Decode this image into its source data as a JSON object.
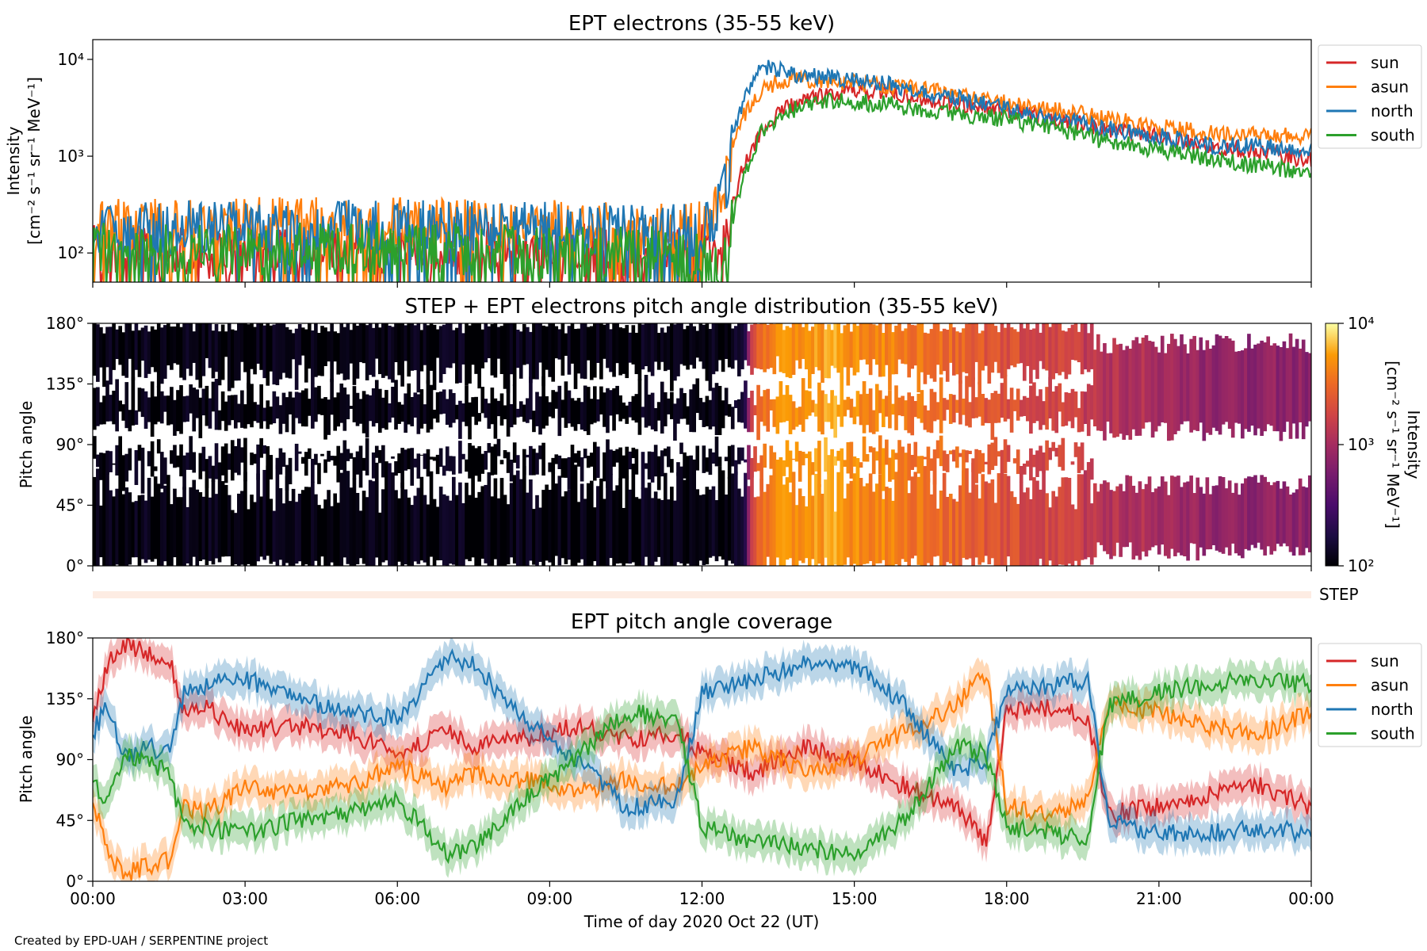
{
  "colors": {
    "sun": "#d62728",
    "asun": "#ff7f0e",
    "north": "#1f77b4",
    "south": "#2ca02c"
  },
  "credit": "Created by EPD-UAH / SERPENTINE project",
  "chart_data": [
    {
      "type": "line",
      "title": "EPT electrons (35-55 keV)",
      "ylabel_line1": "Intensity",
      "ylabel_line2": "[cm⁻² s⁻¹ sr⁻¹ MeV⁻¹]",
      "yscale": "log",
      "ylim": [
        50,
        16000
      ],
      "yticks": [
        {
          "value": 100,
          "label": "10²"
        },
        {
          "value": 1000,
          "label": "10³"
        },
        {
          "value": 10000,
          "label": "10⁴"
        }
      ],
      "xlim_hours": [
        0,
        24
      ],
      "legend_position": "right-outside",
      "series": [
        {
          "name": "sun",
          "color_key": "sun",
          "x": [
            0,
            2,
            4,
            6,
            8,
            10,
            11,
            12.3,
            12.55,
            12.8,
            13.2,
            13.8,
            14.5,
            15.5,
            16.5,
            18,
            20,
            22,
            24
          ],
          "y": [
            105,
            100,
            110,
            115,
            110,
            105,
            105,
            110,
            180,
            700,
            1800,
            3500,
            4500,
            4800,
            3800,
            3000,
            1900,
            1300,
            900
          ]
        },
        {
          "name": "asun",
          "color_key": "asun",
          "x": [
            0,
            2,
            4,
            6,
            8,
            10,
            11,
            12.2,
            12.5,
            12.8,
            13.2,
            13.8,
            14.5,
            15.5,
            16.5,
            18,
            20,
            22,
            24
          ],
          "y": [
            190,
            195,
            200,
            205,
            190,
            185,
            180,
            190,
            600,
            2500,
            5000,
            6500,
            6000,
            5500,
            4800,
            3500,
            2400,
            1700,
            1600
          ]
        },
        {
          "name": "north",
          "color_key": "north",
          "x": [
            0,
            2,
            4,
            6,
            8,
            10,
            11,
            12.2,
            12.5,
            12.8,
            13.2,
            13.8,
            14.5,
            15.5,
            16.5,
            18,
            20,
            22,
            24
          ],
          "y": [
            180,
            185,
            190,
            190,
            180,
            175,
            170,
            180,
            500,
            3500,
            8500,
            7000,
            6500,
            5800,
            4500,
            3000,
            1900,
            1300,
            1200
          ]
        },
        {
          "name": "south",
          "color_key": "south",
          "x": [
            0,
            2,
            4,
            6,
            8,
            10,
            11,
            12.5,
            12.8,
            13.2,
            13.8,
            14.5,
            15.5,
            16.5,
            18,
            20,
            22,
            24
          ],
          "y": [
            110,
            105,
            110,
            110,
            105,
            100,
            100,
            80,
            500,
            1800,
            3000,
            3800,
            3500,
            3000,
            2400,
            1400,
            950,
            650
          ]
        }
      ]
    },
    {
      "type": "heatmap",
      "title": "STEP + EPT electrons pitch angle distribution (35-55 keV)",
      "ylabel": "Pitch angle",
      "ylim": [
        0,
        180
      ],
      "yticks": [
        {
          "value": 0,
          "label": "0°"
        },
        {
          "value": 45,
          "label": "45°"
        },
        {
          "value": 90,
          "label": "90°"
        },
        {
          "value": 135,
          "label": "135°"
        },
        {
          "value": 180,
          "label": "180°"
        }
      ],
      "colorbar": {
        "label": "Intensity",
        "units": "[cm⁻² s⁻¹ sr⁻¹ MeV⁻¹]",
        "scale": "log",
        "range": [
          100,
          10000
        ],
        "ticks": [
          {
            "value": 100,
            "label": "10²"
          },
          {
            "value": 1000,
            "label": "10³"
          },
          {
            "value": 10000,
            "label": "10⁴"
          }
        ]
      },
      "intensity_profile": {
        "x": [
          0,
          2,
          4,
          6,
          8,
          10,
          12,
          12.8,
          13.0,
          13.5,
          14.5,
          15.5,
          16.5,
          18,
          20,
          22,
          24
        ],
        "log10": [
          2.05,
          2.05,
          2.05,
          2.05,
          2.05,
          2.05,
          2.05,
          2.1,
          3.3,
          3.7,
          3.75,
          3.65,
          3.5,
          3.35,
          3.1,
          2.9,
          2.85
        ]
      }
    },
    {
      "type": "line",
      "title": "",
      "step_strip_label": "STEP"
    },
    {
      "type": "line",
      "title": "EPT pitch angle coverage",
      "ylabel": "Pitch angle",
      "xlabel": "Time of day 2020 Oct 22 (UT)",
      "ylim": [
        0,
        180
      ],
      "yticks": [
        {
          "value": 0,
          "label": "0°"
        },
        {
          "value": 45,
          "label": "45°"
        },
        {
          "value": 90,
          "label": "90°"
        },
        {
          "value": 135,
          "label": "135°"
        },
        {
          "value": 180,
          "label": "180°"
        }
      ],
      "xlim_hours": [
        0,
        24
      ],
      "xticks": [
        {
          "value": 0,
          "label": "00:00"
        },
        {
          "value": 3,
          "label": "03:00"
        },
        {
          "value": 6,
          "label": "06:00"
        },
        {
          "value": 9,
          "label": "09:00"
        },
        {
          "value": 12,
          "label": "12:00"
        },
        {
          "value": 15,
          "label": "15:00"
        },
        {
          "value": 18,
          "label": "18:00"
        },
        {
          "value": 21,
          "label": "21:00"
        },
        {
          "value": 24,
          "label": "00:00"
        }
      ],
      "legend_position": "right-outside",
      "series": [
        {
          "name": "sun",
          "color_key": "sun",
          "x": [
            0,
            0.3,
            0.6,
            1.0,
            1.5,
            1.8,
            2.2,
            3.0,
            4.0,
            5.0,
            6.0,
            7.0,
            7.5,
            8.5,
            9.5,
            10.5,
            11.5,
            12.0,
            13.0,
            14.0,
            15.0,
            16.0,
            17.0,
            17.6,
            18.0,
            19.0,
            19.6,
            20.0,
            21.0,
            22.0,
            23.0,
            24.0
          ],
          "y": [
            120,
            160,
            175,
            170,
            165,
            125,
            130,
            110,
            115,
            110,
            95,
            110,
            100,
            105,
            115,
            105,
            110,
            95,
            80,
            100,
            90,
            70,
            55,
            30,
            125,
            130,
            120,
            50,
            55,
            65,
            70,
            55
          ]
        },
        {
          "name": "asun",
          "color_key": "asun",
          "x": [
            0,
            0.3,
            0.6,
            1.0,
            1.5,
            1.8,
            2.2,
            3.0,
            4.0,
            5.0,
            6.0,
            7.0,
            7.5,
            8.5,
            9.5,
            10.5,
            11.5,
            12.0,
            13.0,
            14.0,
            15.0,
            16.0,
            17.0,
            17.6,
            18.0,
            19.0,
            19.6,
            20.0,
            21.0,
            22.0,
            23.0,
            24.0
          ],
          "y": [
            60,
            20,
            5,
            10,
            15,
            55,
            50,
            70,
            65,
            70,
            85,
            70,
            80,
            75,
            65,
            75,
            70,
            85,
            100,
            80,
            90,
            110,
            130,
            155,
            55,
            50,
            60,
            130,
            125,
            115,
            110,
            125
          ]
        },
        {
          "name": "north",
          "color_key": "north",
          "x": [
            0,
            0.3,
            0.6,
            1.0,
            1.5,
            1.8,
            2.2,
            3.0,
            4.0,
            5.0,
            6.0,
            7.0,
            7.5,
            8.5,
            9.5,
            10.5,
            11.5,
            12.0,
            13.0,
            14.0,
            15.0,
            16.0,
            17.0,
            17.6,
            18.0,
            19.0,
            19.6,
            20.0,
            21.0,
            22.0,
            23.0,
            24.0
          ],
          "y": [
            110,
            130,
            90,
            100,
            95,
            140,
            145,
            150,
            135,
            125,
            120,
            165,
            160,
            120,
            90,
            55,
            60,
            140,
            150,
            160,
            160,
            130,
            80,
            90,
            140,
            145,
            150,
            45,
            35,
            35,
            40,
            35
          ]
        },
        {
          "name": "south",
          "color_key": "south",
          "x": [
            0,
            0.3,
            0.6,
            1.0,
            1.5,
            1.8,
            2.2,
            3.0,
            4.0,
            5.0,
            6.0,
            7.0,
            7.5,
            8.5,
            9.5,
            10.5,
            11.5,
            12.0,
            13.0,
            14.0,
            15.0,
            16.0,
            17.0,
            17.6,
            18.0,
            19.0,
            19.6,
            20.0,
            21.0,
            22.0,
            23.0,
            24.0
          ],
          "y": [
            75,
            55,
            95,
            90,
            80,
            40,
            40,
            35,
            45,
            50,
            60,
            20,
            25,
            60,
            90,
            125,
            120,
            40,
            30,
            25,
            20,
            45,
            100,
            95,
            40,
            35,
            30,
            130,
            140,
            145,
            150,
            145
          ]
        }
      ]
    }
  ]
}
